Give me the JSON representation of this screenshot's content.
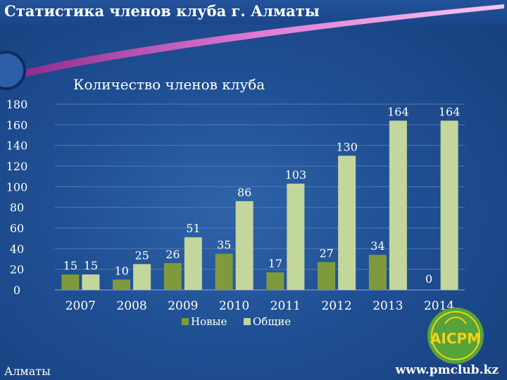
{
  "slide": {
    "title": "Статистика членов клуба г. Алматы",
    "footer_left": "Алматы",
    "footer_right": "www.pmclub.kz",
    "logo_text": "AICPM"
  },
  "colors": {
    "background": "#1f4f93",
    "series_new": "#7e9a3c",
    "series_total": "#c3d69b",
    "text": "#ffffff",
    "logo_green": "#57a33a",
    "logo_yellow": "#f3d21b"
  },
  "chart_data": {
    "type": "bar",
    "title": "Количество членов клуба",
    "categories": [
      "2007",
      "2008",
      "2009",
      "2010",
      "2011",
      "2012",
      "2013",
      "2014"
    ],
    "series": [
      {
        "name": "Новые",
        "values": [
          15,
          10,
          26,
          35,
          17,
          27,
          34,
          0
        ]
      },
      {
        "name": "Общие",
        "values": [
          15,
          25,
          51,
          86,
          103,
          130,
          164,
          164
        ]
      }
    ],
    "ylim": [
      0,
      180
    ],
    "yticks": [
      0,
      20,
      40,
      60,
      80,
      100,
      120,
      140,
      160,
      180
    ],
    "grid": true,
    "legend": "bottom"
  }
}
